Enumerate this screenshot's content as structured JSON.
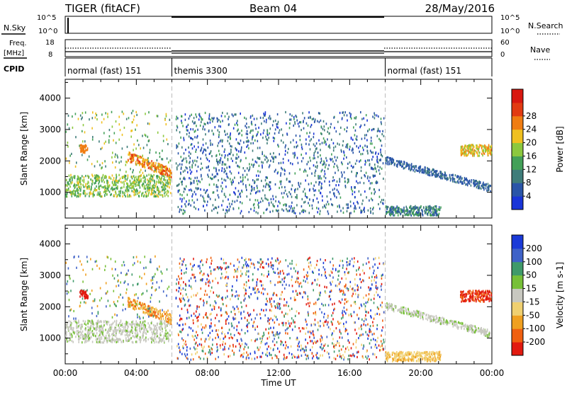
{
  "header": {
    "station": "TIGER (fitACF)",
    "beam": "Beam 04",
    "date": "28/May/2016"
  },
  "top_panels": {
    "nsky_label": "N.Sky",
    "nsky_ticks": [
      "10^5",
      "10^0"
    ],
    "nsearch_label": "N.Search",
    "nsearch_ticks": [
      "10^5",
      "10^0"
    ],
    "freq_label_1": "Freq.",
    "freq_label_2": "[MHz]",
    "freq_ticks": [
      "18",
      "8"
    ],
    "nave_label": "Nave",
    "nave_ticks": [
      "60",
      "0"
    ],
    "cpid_label": "CPID",
    "cpid_segments": [
      {
        "label": "normal (fast) 151",
        "start_h": 0,
        "end_h": 6
      },
      {
        "label": "themis 3300",
        "start_h": 6,
        "end_h": 18
      },
      {
        "label": "normal (fast) 151",
        "start_h": 18,
        "end_h": 24
      }
    ]
  },
  "chart_data": [
    {
      "type": "heatmap",
      "panel": "power",
      "xlabel": "",
      "ylabel": "Slant Range [km]",
      "x_range_hours": [
        0,
        24
      ],
      "ylim": [
        180,
        4600
      ],
      "y_ticks": [
        1000,
        2000,
        3000,
        4000
      ],
      "colorbar": {
        "label": "Power [dB]",
        "ticks": [
          "4",
          "8",
          "12",
          "16",
          "20",
          "24",
          "28"
        ],
        "colors": [
          "#1a35d8",
          "#2a55a8",
          "#3f7d7a",
          "#43a058",
          "#8cc83e",
          "#f0c020",
          "#f07d12",
          "#e23b12",
          "#d81810"
        ]
      }
    },
    {
      "type": "heatmap",
      "panel": "velocity",
      "xlabel": "Time UT",
      "ylabel": "Slant Range [km]",
      "x_range_hours": [
        0,
        24
      ],
      "ylim": [
        180,
        4600
      ],
      "y_ticks": [
        1000,
        2000,
        3000,
        4000
      ],
      "x_ticks": [
        "00:00",
        "04:00",
        "08:00",
        "12:00",
        "16:00",
        "20:00",
        "00:00"
      ],
      "colorbar": {
        "label": "Velocity [m s-1]",
        "ticks": [
          "200",
          "100",
          "50",
          "15",
          "-15",
          "-50",
          "-100",
          "-200"
        ],
        "colors": [
          "#1a3ad8",
          "#3f62c8",
          "#3f9a6a",
          "#77c038",
          "#c8c8c0",
          "#f0d070",
          "#f0a020",
          "#f06010",
          "#e21a10"
        ]
      }
    }
  ]
}
